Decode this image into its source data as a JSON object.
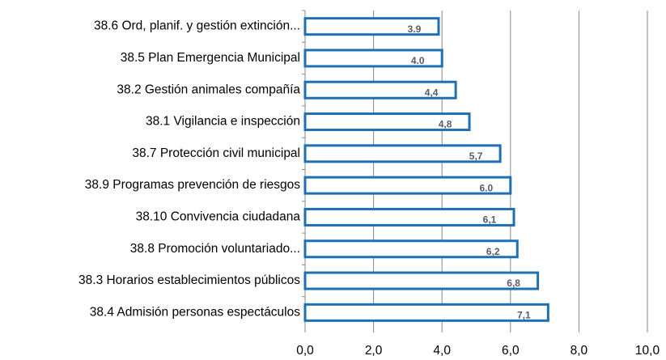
{
  "chart_data": {
    "type": "bar",
    "orientation": "horizontal",
    "categories": [
      "38.6 Ord, planif. y gestión extinción...",
      "38.5 Plan Emergencia Municipal",
      "38.2 Gestión animales compañía",
      "38.1 Vigilancia e inspección",
      "38.7 Protección civil municipal",
      "38.9 Programas prevención de riesgos",
      "38.10 Convivencia ciudadana",
      "38.8 Promoción voluntariado...",
      "38.3 Horarios establecimientos públicos",
      "38.4 Admisión personas espectáculos"
    ],
    "values": [
      3.9,
      4.0,
      4.4,
      4.8,
      5.7,
      6.0,
      6.1,
      6.2,
      6.8,
      7.1
    ],
    "value_labels": [
      "3.9",
      "4.0",
      "4,4",
      "4,8",
      "5,7",
      "6.0",
      "6,1",
      "6,2",
      "6,8",
      "7,1"
    ],
    "color": "#1f6fb5",
    "xlim": [
      0,
      10
    ],
    "xticks": [
      {
        "value": 0,
        "label": "0,0"
      },
      {
        "value": 2,
        "label": "2,0"
      },
      {
        "value": 4,
        "label": "4,0"
      },
      {
        "value": 6,
        "label": "6,0"
      },
      {
        "value": 8,
        "label": "8,0"
      },
      {
        "value": 10,
        "label": "10,0"
      }
    ],
    "grid": true
  }
}
